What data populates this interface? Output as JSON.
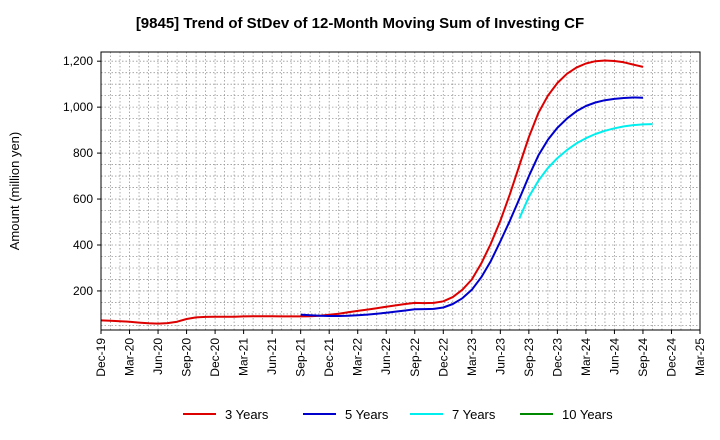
{
  "chart_data": {
    "type": "line",
    "title": "[9845]  Trend of StDev of 12-Month Moving Sum of Investing CF",
    "ylabel": "Amount (million yen)",
    "xlabel": "",
    "ylim": [
      30,
      1240
    ],
    "yticks": [
      200,
      400,
      600,
      800,
      1000,
      1200
    ],
    "ytick_labels": [
      "200",
      "400",
      "600",
      "800",
      "1,000",
      "1,200"
    ],
    "x_labels": [
      "Dec-19",
      "Mar-20",
      "Jun-20",
      "Sep-20",
      "Dec-20",
      "Mar-21",
      "Jun-21",
      "Sep-21",
      "Dec-21",
      "Mar-22",
      "Jun-22",
      "Sep-22",
      "Dec-22",
      "Mar-23",
      "Jun-23",
      "Sep-23",
      "Dec-23",
      "Mar-24",
      "Jun-24",
      "Sep-24",
      "Dec-24",
      "Mar-25"
    ],
    "grid": true,
    "legend_position": "bottom",
    "series": [
      {
        "name": "3 Years",
        "color": "#dd0000",
        "values": [
          72,
          70,
          68,
          66,
          62,
          59,
          58,
          60,
          66,
          78,
          85,
          87,
          88,
          88,
          88,
          89,
          90,
          90,
          90,
          89,
          89,
          89,
          90,
          92,
          96,
          101,
          107,
          113,
          119,
          125,
          131,
          137,
          143,
          148,
          147,
          148,
          155,
          173,
          205,
          250,
          320,
          405,
          505,
          620,
          745,
          870,
          975,
          1050,
          1105,
          1145,
          1172,
          1190,
          1200,
          1203,
          1201,
          1195,
          1185,
          1175
        ]
      },
      {
        "name": "5 Years",
        "color": "#0000cc",
        "values": [
          null,
          null,
          null,
          null,
          null,
          null,
          null,
          null,
          null,
          null,
          null,
          null,
          null,
          null,
          null,
          null,
          null,
          null,
          null,
          null,
          null,
          97,
          94,
          92,
          91,
          91,
          92,
          94,
          97,
          101,
          105,
          110,
          115,
          120,
          121,
          122,
          128,
          143,
          168,
          205,
          260,
          330,
          415,
          505,
          600,
          700,
          790,
          858,
          910,
          950,
          982,
          1005,
          1020,
          1030,
          1036,
          1040,
          1042,
          1041
        ]
      },
      {
        "name": "7 Years",
        "color": "#00eeee",
        "values": [
          null,
          null,
          null,
          null,
          null,
          null,
          null,
          null,
          null,
          null,
          null,
          null,
          null,
          null,
          null,
          null,
          null,
          null,
          null,
          null,
          null,
          null,
          null,
          null,
          null,
          null,
          null,
          null,
          null,
          null,
          null,
          null,
          null,
          null,
          null,
          null,
          null,
          null,
          null,
          null,
          null,
          null,
          null,
          null,
          515,
          610,
          680,
          735,
          778,
          813,
          842,
          865,
          883,
          897,
          908,
          916,
          922,
          925,
          926
        ]
      },
      {
        "name": "10 Years",
        "color": "#008800",
        "values": []
      }
    ]
  }
}
